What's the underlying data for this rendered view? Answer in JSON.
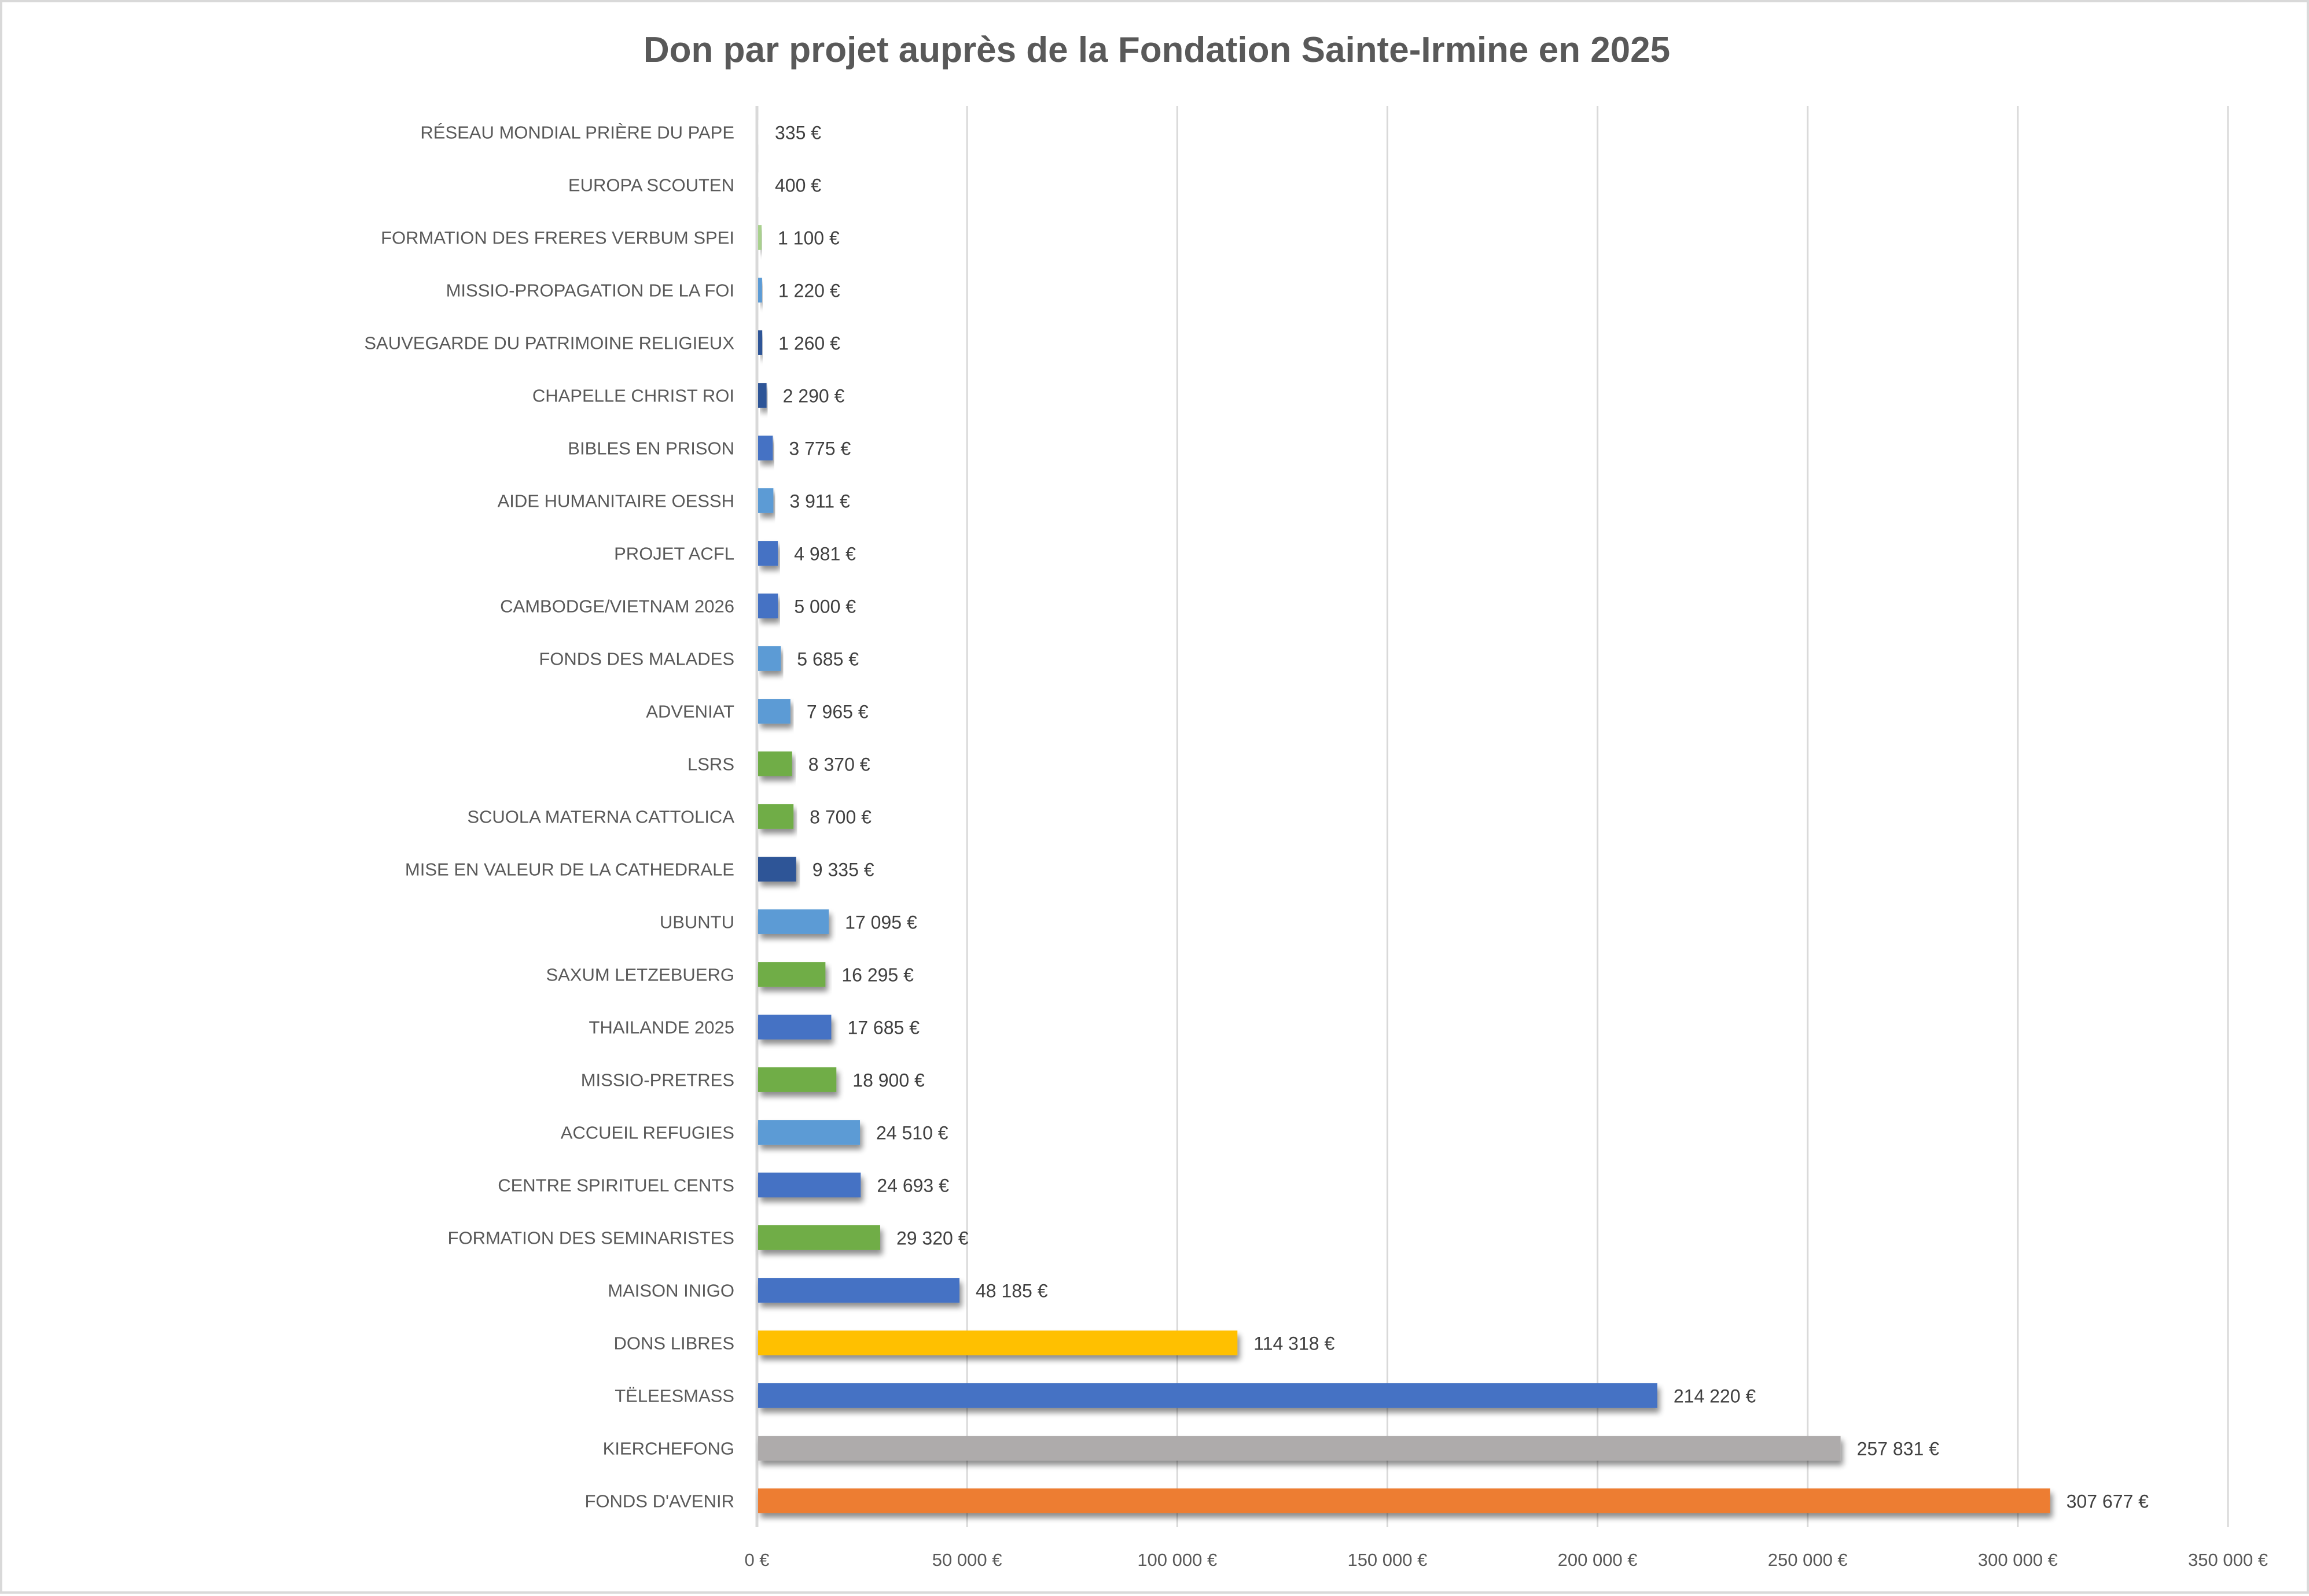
{
  "chart_data": {
    "type": "bar",
    "orientation": "horizontal",
    "title": "Don par projet auprès de la Fondation Sainte-Irmine en 2025",
    "xlabel": "",
    "ylabel": "",
    "xlim": [
      0,
      350000
    ],
    "x_ticks": [
      0,
      50000,
      100000,
      150000,
      200000,
      250000,
      300000,
      350000
    ],
    "x_tick_labels": [
      "0 €",
      "50 000 €",
      "100 000 €",
      "150 000 €",
      "200 000 €",
      "250 000 €",
      "300 000 €",
      "350 000 €"
    ],
    "grid": true,
    "legend": "none",
    "bars": [
      {
        "category": "RÉSEAU MONDIAL PRIÈRE DU PAPE",
        "value": 335,
        "label": "335 €",
        "color": "#F2F2F2"
      },
      {
        "category": "EUROPA SCOUTEN",
        "value": 400,
        "label": "400 €",
        "color": "#F2F2F2"
      },
      {
        "category": "FORMATION DES FRERES VERBUM SPEI",
        "value": 1100,
        "label": "1 100 €",
        "color": "#A9D18E"
      },
      {
        "category": "MISSIO-PROPAGATION DE LA FOI",
        "value": 1220,
        "label": "1 220 €",
        "color": "#5B9BD5"
      },
      {
        "category": "SAUVEGARDE DU PATRIMOINE RELIGIEUX",
        "value": 1260,
        "label": "1 260 €",
        "color": "#2F5597"
      },
      {
        "category": "CHAPELLE CHRIST ROI",
        "value": 2290,
        "label": "2 290 €",
        "color": "#2F5597"
      },
      {
        "category": "BIBLES EN PRISON",
        "value": 3775,
        "label": "3 775 €",
        "color": "#4472C4"
      },
      {
        "category": "AIDE HUMANITAIRE OESSH",
        "value": 3911,
        "label": "3 911 €",
        "color": "#5B9BD5"
      },
      {
        "category": "PROJET ACFL",
        "value": 4981,
        "label": "4 981 €",
        "color": "#4472C4"
      },
      {
        "category": "CAMBODGE/VIETNAM 2026",
        "value": 5000,
        "label": "5 000 €",
        "color": "#4472C4"
      },
      {
        "category": "FONDS DES MALADES",
        "value": 5685,
        "label": "5 685 €",
        "color": "#5B9BD5"
      },
      {
        "category": "ADVENIAT",
        "value": 7965,
        "label": "7 965 €",
        "color": "#5B9BD5"
      },
      {
        "category": "LSRS",
        "value": 8370,
        "label": "8 370 €",
        "color": "#70AD47"
      },
      {
        "category": "SCUOLA MATERNA CATTOLICA",
        "value": 8700,
        "label": "8 700 €",
        "color": "#70AD47"
      },
      {
        "category": "MISE EN VALEUR DE LA CATHEDRALE",
        "value": 9335,
        "label": "9 335 €",
        "color": "#2F5597"
      },
      {
        "category": "UBUNTU",
        "value": 17095,
        "label": "17 095 €",
        "color": "#5B9BD5"
      },
      {
        "category": "SAXUM LETZEBUERG",
        "value": 16295,
        "label": "16 295 €",
        "color": "#70AD47"
      },
      {
        "category": "THAILANDE 2025",
        "value": 17685,
        "label": "17 685 €",
        "color": "#4472C4"
      },
      {
        "category": "MISSIO-PRETRES",
        "value": 18900,
        "label": "18 900 €",
        "color": "#70AD47"
      },
      {
        "category": "ACCUEIL REFUGIES",
        "value": 24510,
        "label": "24 510 €",
        "color": "#5B9BD5"
      },
      {
        "category": "CENTRE SPIRITUEL CENTS ",
        "value": 24693,
        "label": "24 693 €",
        "color": "#4472C4"
      },
      {
        "category": "FORMATION DES SEMINARISTES",
        "value": 29320,
        "label": "29 320 €",
        "color": "#70AD47"
      },
      {
        "category": "MAISON INIGO",
        "value": 48185,
        "label": "48 185 €",
        "color": "#4472C4"
      },
      {
        "category": "DONS LIBRES",
        "value": 114318,
        "label": "114 318 €",
        "color": "#FFC000"
      },
      {
        "category": "TËLEESMASS",
        "value": 214220,
        "label": "214 220 €",
        "color": "#4472C4"
      },
      {
        "category": "KIERCHEFONG",
        "value": 257831,
        "label": "257 831 €",
        "color": "#AEABAB"
      },
      {
        "category": "FONDS D'AVENIR",
        "value": 307677,
        "label": "307 677 €",
        "color": "#ED7D31"
      }
    ]
  }
}
